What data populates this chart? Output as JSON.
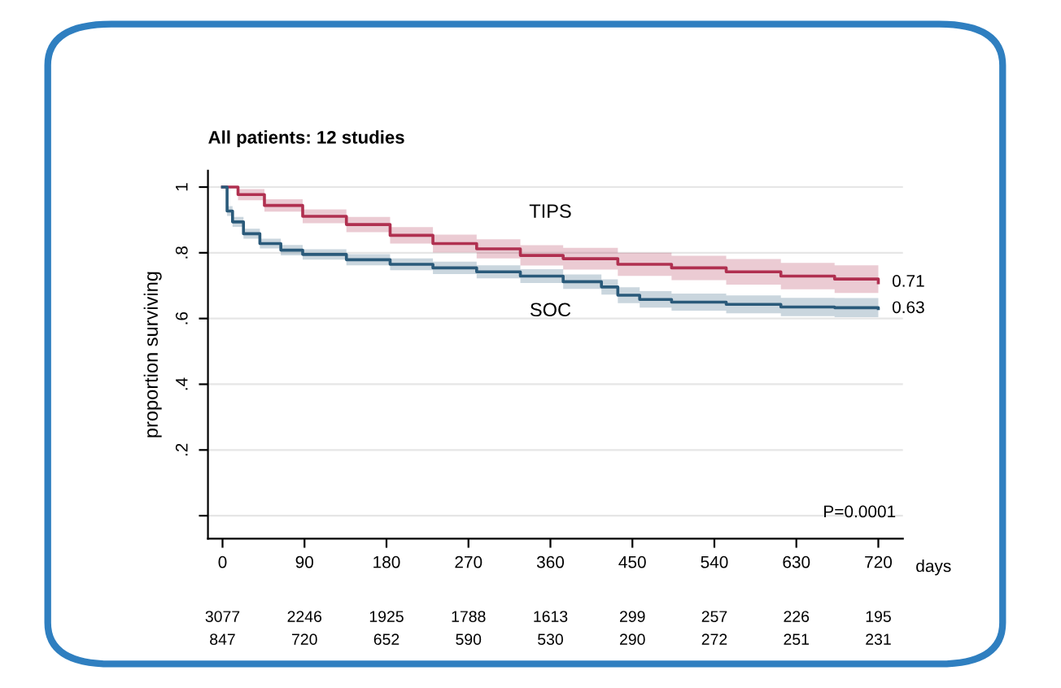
{
  "chart_data": {
    "type": "step",
    "title": "All patients: 12 studies",
    "xlabel": "days",
    "ylabel": "proportion surviving",
    "xlim": [
      -16,
      747
    ],
    "ylim": [
      -0.07,
      1.05
    ],
    "xticks": [
      0,
      90,
      180,
      270,
      360,
      450,
      540,
      630,
      720
    ],
    "yticks": [
      {
        "value": 0,
        "label": null
      },
      {
        "value": 0.2,
        "label": ".2"
      },
      {
        "value": 0.4,
        "label": ".4"
      },
      {
        "value": 0.6,
        "label": ".6"
      },
      {
        "value": 0.8,
        "label": ".8"
      },
      {
        "value": 1,
        "label": "1"
      }
    ],
    "grid": "y",
    "legend": false,
    "series": [
      {
        "name": "TIPS",
        "color": "#b03050",
        "x": [
          0,
          17,
          46,
          88,
          136,
          184,
          231,
          279,
          327,
          374,
          434,
          493,
          553,
          613,
          672,
          720
        ],
        "values": [
          1,
          0.977,
          0.944,
          0.911,
          0.886,
          0.853,
          0.828,
          0.812,
          0.792,
          0.782,
          0.765,
          0.754,
          0.742,
          0.729,
          0.72,
          0.709
        ],
        "lower": [
          1,
          0.96,
          0.925,
          0.89,
          0.863,
          0.828,
          0.801,
          0.783,
          0.761,
          0.749,
          0.73,
          0.717,
          0.703,
          0.689,
          0.678,
          0.668
        ],
        "upper": [
          1,
          0.994,
          0.963,
          0.932,
          0.909,
          0.878,
          0.855,
          0.841,
          0.823,
          0.815,
          0.8,
          0.791,
          0.781,
          0.769,
          0.762,
          0.75
        ]
      },
      {
        "name": "SOC",
        "color": "#2a5a7a",
        "x": [
          0,
          5,
          11,
          23,
          41,
          64,
          88,
          136,
          184,
          231,
          279,
          327,
          374,
          416,
          434,
          458,
          493,
          553,
          613,
          672,
          720
        ],
        "values": [
          1,
          0.927,
          0.894,
          0.858,
          0.828,
          0.808,
          0.795,
          0.779,
          0.765,
          0.754,
          0.742,
          0.729,
          0.712,
          0.696,
          0.671,
          0.658,
          0.65,
          0.643,
          0.635,
          0.633,
          0.63
        ],
        "lower": [
          1,
          0.912,
          0.879,
          0.843,
          0.813,
          0.792,
          0.779,
          0.762,
          0.747,
          0.735,
          0.722,
          0.708,
          0.69,
          0.673,
          0.647,
          0.633,
          0.624,
          0.616,
          0.607,
          0.604,
          0.6
        ],
        "upper": [
          1,
          0.942,
          0.909,
          0.873,
          0.843,
          0.824,
          0.811,
          0.796,
          0.783,
          0.773,
          0.762,
          0.75,
          0.734,
          0.719,
          0.695,
          0.683,
          0.676,
          0.67,
          0.663,
          0.662,
          0.66
        ]
      }
    ],
    "annotations": [
      {
        "text": "0.71",
        "x": 720,
        "y": 0.71
      },
      {
        "text": "0.63",
        "x": 720,
        "y": 0.63
      },
      "P=0.0001",
      "3077",
      "2246",
      "1925",
      "1788",
      "1613",
      "299",
      "257",
      "226",
      "195",
      "847",
      "720",
      "652",
      "590",
      "530",
      "290",
      "272",
      "251",
      "231"
    ]
  }
}
